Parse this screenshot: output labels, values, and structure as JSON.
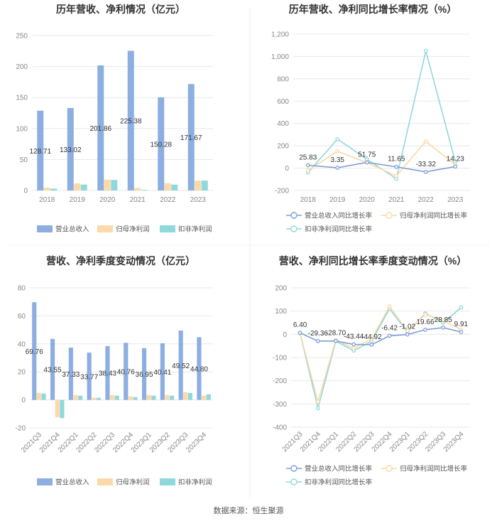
{
  "colors": {
    "revenue": "#8caee0",
    "net_profit": "#fbd9a9",
    "deducted_profit": "#8fd8dc",
    "revenue_line": "#7f9fd6",
    "net_line": "#f9d8a6",
    "deducted_line": "#8fd8dc"
  },
  "source_label": "数据来源：恒生聚源",
  "chart_data": [
    {
      "id": "annual_bar",
      "type": "bar",
      "title": "历年营收、净利情况（亿元）",
      "categories": [
        "2018",
        "2019",
        "2020",
        "2021",
        "2022",
        "2023"
      ],
      "ylim": [
        0,
        250
      ],
      "yticks": [
        "0",
        "50",
        "100",
        "150",
        "200",
        "250"
      ],
      "tick_values": [
        0,
        50,
        100,
        150,
        200,
        250
      ],
      "series": [
        {
          "name": "营业总收入",
          "values": [
            128.71,
            133.02,
            201.86,
            225.38,
            150.28,
            171.67
          ],
          "labels": [
            "128.71",
            "133.02",
            "201.86",
            "225.38",
            "150.28",
            "171.67"
          ]
        },
        {
          "name": "归母净利润",
          "values": [
            4.5,
            11.5,
            17.5,
            4.0,
            11.5,
            16.0
          ]
        },
        {
          "name": "扣非净利润",
          "values": [
            3.0,
            9.5,
            17.0,
            1.0,
            9.5,
            16.0
          ]
        }
      ]
    },
    {
      "id": "annual_line",
      "type": "line",
      "title": "历年营收、净利同比增长率情况（%）",
      "categories": [
        "2018",
        "2019",
        "2020",
        "2021",
        "2022",
        "2023"
      ],
      "ylim": [
        -200,
        1200
      ],
      "yticks": [
        "-200",
        "0",
        "200",
        "400",
        "600",
        "800",
        "1,000",
        "1,200"
      ],
      "tick_values": [
        -200,
        0,
        200,
        400,
        600,
        800,
        1000,
        1200
      ],
      "series": [
        {
          "name": "营业总收入同比增长率",
          "values": [
            25.83,
            3.35,
            51.75,
            11.65,
            -33.32,
            14.23
          ],
          "labels": [
            "25.83",
            "3.35",
            "51.75",
            "11.65",
            "-33.32",
            "14.23"
          ]
        },
        {
          "name": "归母净利润同比增长率",
          "values": [
            -20,
            150,
            50,
            -70,
            240,
            30
          ]
        },
        {
          "name": "扣非净利润同比增长率",
          "values": [
            -40,
            260,
            80,
            -95,
            1050,
            60
          ]
        }
      ]
    },
    {
      "id": "quarterly_bar",
      "type": "bar",
      "title": "营收、净利季度变动情况（亿元）",
      "categories": [
        "2021Q3",
        "2021Q4",
        "2022Q1",
        "2022Q2",
        "2022Q3",
        "2022Q4",
        "2023Q1",
        "2023Q2",
        "2023Q3",
        "2023Q4"
      ],
      "ylim": [
        -20,
        80
      ],
      "yticks": [
        "-20",
        "0",
        "20",
        "40",
        "60",
        "80"
      ],
      "tick_values": [
        -20,
        0,
        20,
        40,
        60,
        80
      ],
      "series": [
        {
          "name": "营业总收入",
          "values": [
            69.76,
            43.55,
            37.33,
            33.77,
            38.43,
            40.76,
            36.95,
            40.41,
            49.52,
            44.8
          ],
          "labels": [
            "69.76",
            "43.55",
            "37.33",
            "33.77",
            "38.43",
            "40.76",
            "36.95",
            "40.41",
            "49.52",
            "44.80"
          ]
        },
        {
          "name": "归母净利润",
          "values": [
            5.0,
            -12.5,
            3.5,
            1.5,
            3.5,
            2.5,
            3.5,
            3.5,
            5.5,
            3.0
          ]
        },
        {
          "name": "扣非净利润",
          "values": [
            4.5,
            -13.0,
            3.0,
            1.5,
            3.0,
            2.0,
            3.0,
            3.0,
            5.0,
            4.0
          ]
        }
      ]
    },
    {
      "id": "quarterly_line",
      "type": "line",
      "title": "营收、净利同比增长率季度变动情况（%）",
      "categories": [
        "2021Q3",
        "2021Q4",
        "2022Q1",
        "2022Q2",
        "2022Q3",
        "2022Q4",
        "2023Q1",
        "2023Q2",
        "2023Q3",
        "2023Q4"
      ],
      "ylim": [
        -400,
        200
      ],
      "yticks": [
        "-400",
        "-300",
        "-200",
        "-100",
        "0",
        "100",
        "200"
      ],
      "tick_values": [
        -400,
        -300,
        -200,
        -100,
        0,
        100,
        200
      ],
      "series": [
        {
          "name": "营业总收入同比增长率",
          "values": [
            6.4,
            -29.36,
            -28.7,
            -43.44,
            -44.92,
            -6.42,
            -1.02,
            19.66,
            28.85,
            9.91
          ],
          "labels": [
            "6.40",
            "-29.36",
            "-28.70",
            "-43.44",
            "-44.92",
            "-6.42",
            "-1.02",
            "19.66",
            "28.85",
            "9.91"
          ]
        },
        {
          "name": "归母净利润同比增长率",
          "values": [
            5,
            -290,
            -25,
            -60,
            -20,
            120,
            15,
            85,
            60,
            20
          ]
        },
        {
          "name": "扣非净利润同比增长率",
          "values": [
            5,
            -318,
            -30,
            -70,
            -30,
            110,
            10,
            90,
            50,
            115
          ]
        }
      ]
    }
  ]
}
